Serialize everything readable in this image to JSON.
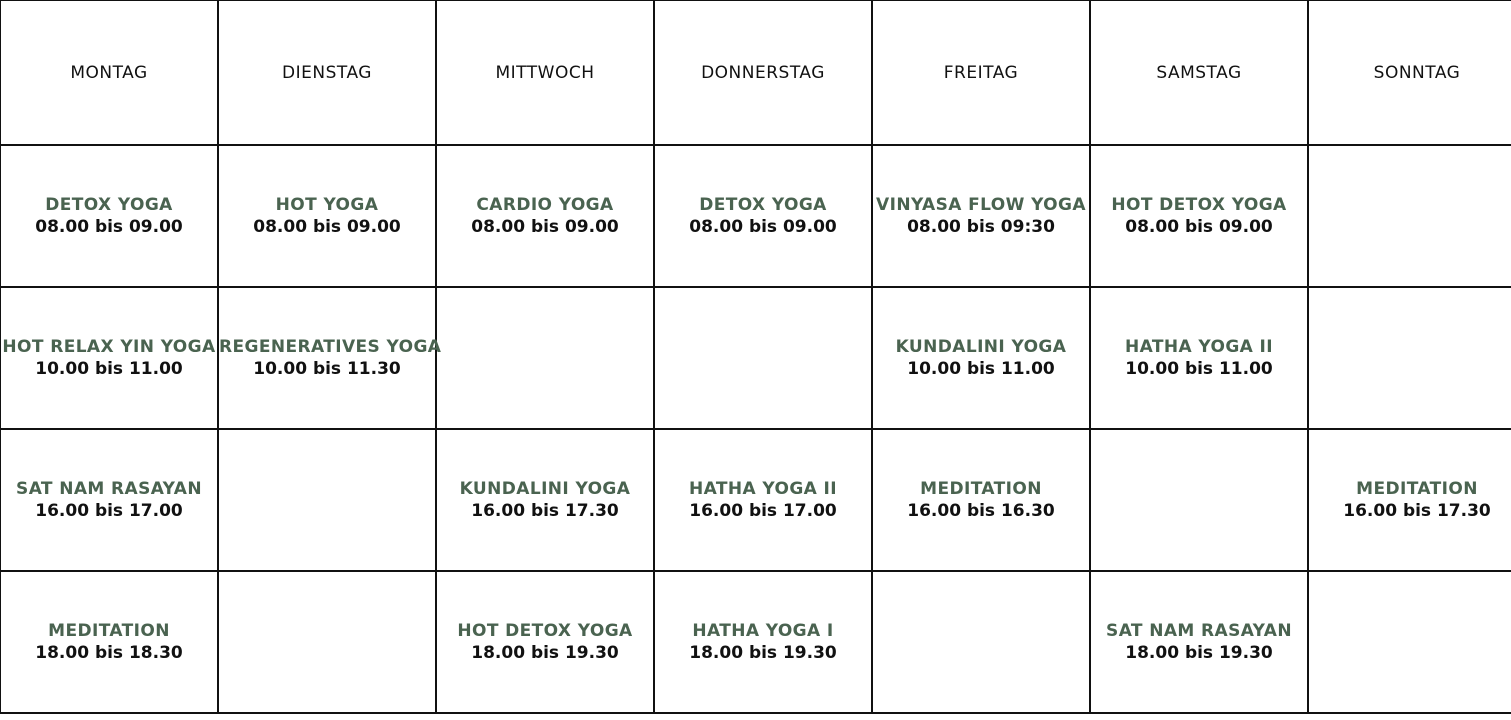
{
  "days": [
    "MONTAG",
    "DIENSTAG",
    "MITTWOCH",
    "DONNERSTAG",
    "FREITAG",
    "SAMSTAG",
    "SONNTAG"
  ],
  "rows": [
    [
      {
        "name": "DETOX YOGA",
        "time": "08.00 bis 09.00"
      },
      {
        "name": "HOT YOGA",
        "time": "08.00 bis 09.00"
      },
      {
        "name": "CARDIO YOGA",
        "time": "08.00 bis 09.00"
      },
      {
        "name": "DETOX YOGA",
        "time": "08.00 bis 09.00"
      },
      {
        "name": "VINYASA FLOW YOGA",
        "time": "08.00 bis 09:30"
      },
      {
        "name": "HOT DETOX YOGA",
        "time": "08.00 bis 09.00"
      },
      null
    ],
    [
      {
        "name": "HOT RELAX YIN YOGA",
        "time": "10.00 bis 11.00"
      },
      {
        "name": "REGENERATIVES YOGA",
        "time": "10.00 bis 11.30"
      },
      null,
      null,
      {
        "name": "KUNDALINI YOGA",
        "time": "10.00 bis 11.00"
      },
      {
        "name": "HATHA YOGA II",
        "time": "10.00 bis 11.00"
      },
      null
    ],
    [
      {
        "name": "SAT NAM RASAYAN",
        "time": "16.00 bis 17.00"
      },
      null,
      {
        "name": "KUNDALINI YOGA",
        "time": "16.00 bis 17.30"
      },
      {
        "name": "HATHA YOGA II",
        "time": "16.00 bis 17.00"
      },
      {
        "name": "MEDITATION",
        "time": "16.00 bis 16.30"
      },
      null,
      {
        "name": "MEDITATION",
        "time": "16.00 bis 17.30"
      }
    ],
    [
      {
        "name": "MEDITATION",
        "time": "18.00 bis 18.30"
      },
      null,
      {
        "name": "HOT DETOX YOGA",
        "time": "18.00 bis 19.30"
      },
      {
        "name": "HATHA YOGA I",
        "time": "18.00 bis 19.30"
      },
      null,
      {
        "name": "SAT NAM RASAYAN",
        "time": "18.00 bis 19.30"
      },
      null
    ]
  ],
  "colors": {
    "class_name": "#4a6350",
    "text": "#111111",
    "grid": "#111111"
  }
}
